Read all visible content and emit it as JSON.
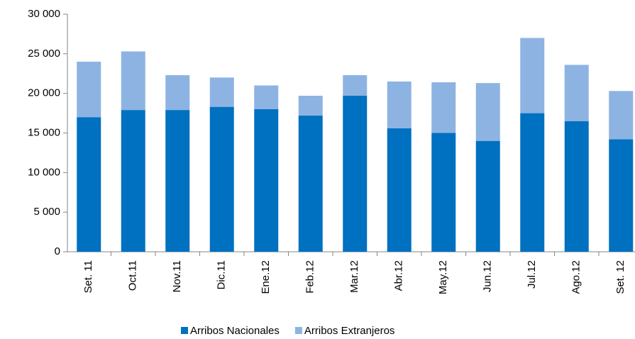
{
  "chart_data": {
    "type": "stacked_bar",
    "categories": [
      "Set. 11",
      "Oct.11",
      "Nov.11",
      "Dic.11",
      "Ene.12",
      "Feb.12",
      "Mar.12",
      "Abr.12",
      "May.12",
      "Jun.12",
      "Jul.12",
      "Ago.12",
      "Set. 12"
    ],
    "series": [
      {
        "name": "Arribos Nacionales",
        "color": "#0070c0",
        "values": [
          17000,
          17900,
          17900,
          18300,
          18000,
          17200,
          19700,
          15600,
          15000,
          14000,
          17500,
          16500,
          14200
        ]
      },
      {
        "name": "Arribos Extranjeros",
        "color": "#8db3e2",
        "values": [
          7000,
          7400,
          4400,
          3700,
          3000,
          2500,
          2600,
          5900,
          6400,
          7300,
          9500,
          7100,
          6100
        ]
      }
    ],
    "ylim": [
      0,
      30000
    ],
    "yticks": [
      0,
      {
        "value": 5000,
        "label": "5 000"
      },
      {
        "value": 10000,
        "label": "10 000"
      },
      {
        "value": 15000,
        "label": "15 000"
      },
      {
        "value": 20000,
        "label": "20 000"
      },
      {
        "value": 25000,
        "label": "25 000"
      },
      {
        "value": 30000,
        "label": "30 000"
      }
    ],
    "legend": "bottom"
  }
}
